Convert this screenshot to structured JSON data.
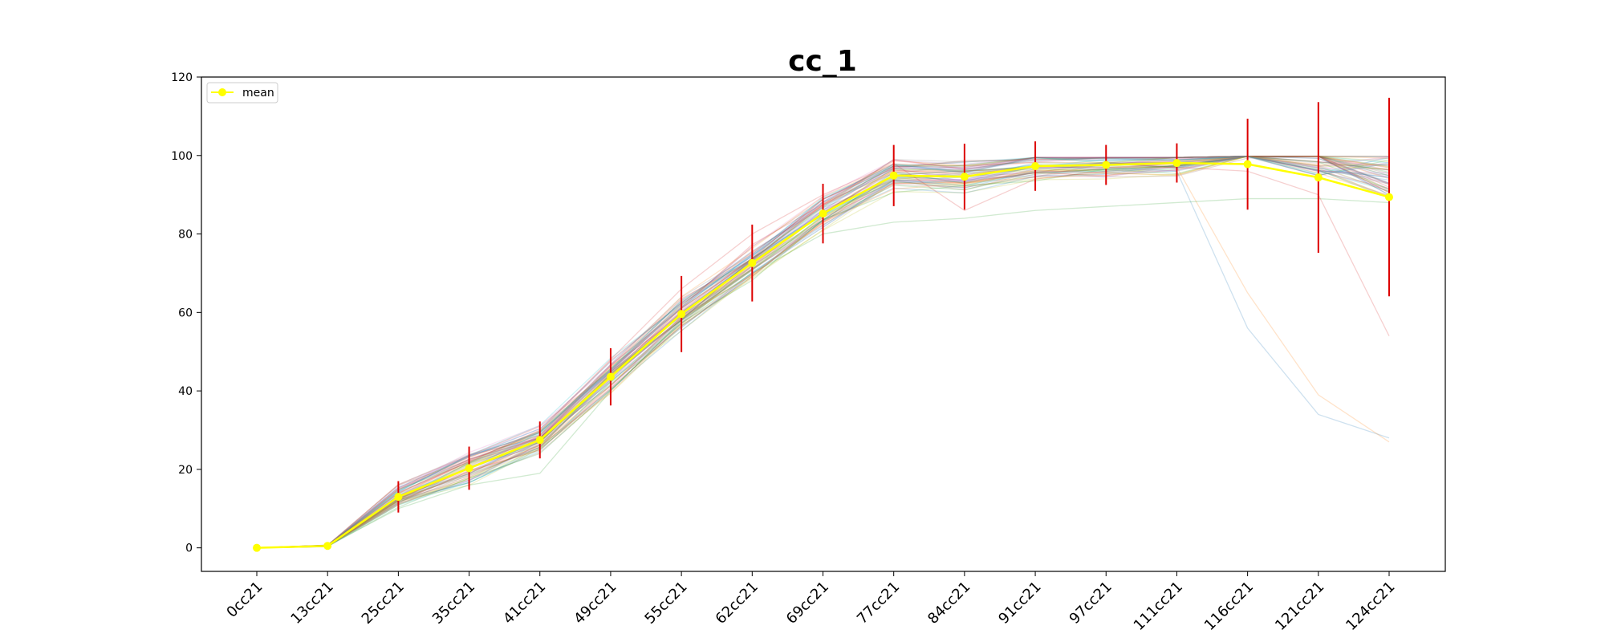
{
  "chart_data": {
    "type": "line",
    "title": "cc_1",
    "xlabel": "",
    "ylabel": "",
    "categories": [
      "0cc21",
      "13cc21",
      "25cc21",
      "35cc21",
      "41cc21",
      "49cc21",
      "55cc21",
      "62cc21",
      "69cc21",
      "77cc21",
      "84cc21",
      "91cc21",
      "97cc21",
      "111cc21",
      "116cc21",
      "121cc21",
      "124cc21"
    ],
    "ylim": [
      -6,
      120
    ],
    "yticks": [
      0,
      20,
      40,
      60,
      80,
      100,
      120
    ],
    "grid": false,
    "legend_position": "top-left",
    "series": [
      {
        "name": "mean",
        "color": "#ffff00",
        "marker": "circle",
        "values": [
          0,
          0.5,
          13,
          20.3,
          27.5,
          43.6,
          59.6,
          72.6,
          85.2,
          94.9,
          94.6,
          97.3,
          97.6,
          98.1,
          97.8,
          94.4,
          89.4
        ],
        "error": [
          0,
          0.3,
          4,
          5.5,
          4.7,
          7.3,
          9.7,
          9.8,
          7.6,
          7.8,
          8.4,
          6.3,
          5.1,
          5,
          11.6,
          19.2,
          25.3
        ],
        "error_color": "#dd0000"
      }
    ],
    "individual_curves": {
      "description_colors": [
        "#1f77b4",
        "#ff7f0e",
        "#2ca02c",
        "#d62728",
        "#9467bd",
        "#8c564b",
        "#e377c2",
        "#7f7f7f",
        "#bcbd22",
        "#17becf"
      ],
      "outliers": [
        [
          0,
          0.5,
          12,
          19,
          27,
          44,
          60,
          73,
          85,
          95,
          96,
          97,
          97,
          96,
          56,
          34,
          28
        ],
        [
          0,
          0.5,
          12,
          19,
          27,
          44,
          60,
          73,
          85,
          95,
          96,
          97,
          97,
          97,
          65,
          39,
          27
        ],
        [
          0,
          0.5,
          10,
          16,
          19,
          40,
          58,
          70,
          80,
          83,
          84,
          86,
          87,
          88,
          89,
          89,
          88
        ],
        [
          0,
          0.5,
          14,
          22,
          30,
          48,
          66,
          80,
          90,
          98,
          86,
          94,
          96,
          97,
          96,
          90,
          54
        ]
      ]
    }
  }
}
